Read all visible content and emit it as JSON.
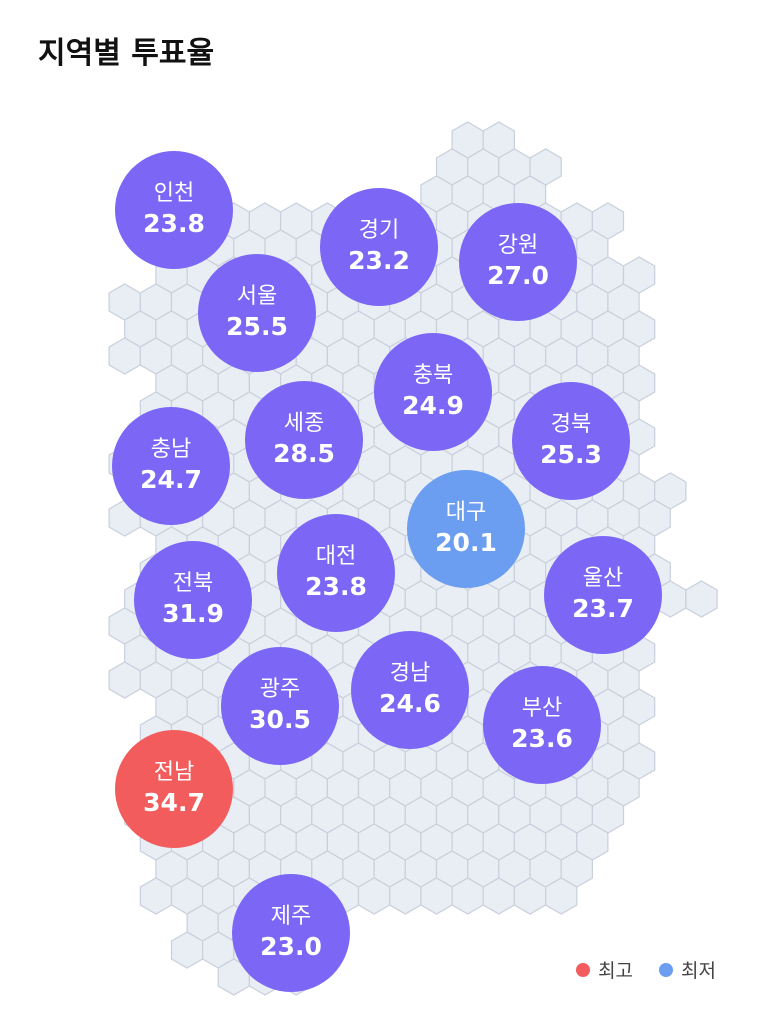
{
  "title": "지역별 투표율",
  "colors": {
    "default": "#7b66f6",
    "highest": "#f25c5c",
    "lowest": "#6b9ef0",
    "hex_fill": "#e9edf4",
    "hex_stroke": "#c9d0dc"
  },
  "regions": [
    {
      "name": "인천",
      "rate": "23.8",
      "status": "normal"
    },
    {
      "name": "경기",
      "rate": "23.2",
      "status": "normal"
    },
    {
      "name": "강원",
      "rate": "27.0",
      "status": "normal"
    },
    {
      "name": "서울",
      "rate": "25.5",
      "status": "normal"
    },
    {
      "name": "충북",
      "rate": "24.9",
      "status": "normal"
    },
    {
      "name": "세종",
      "rate": "28.5",
      "status": "normal"
    },
    {
      "name": "충남",
      "rate": "24.7",
      "status": "normal"
    },
    {
      "name": "경북",
      "rate": "25.3",
      "status": "normal"
    },
    {
      "name": "대구",
      "rate": "20.1",
      "status": "lowest"
    },
    {
      "name": "대전",
      "rate": "23.8",
      "status": "normal"
    },
    {
      "name": "전북",
      "rate": "31.9",
      "status": "normal"
    },
    {
      "name": "울산",
      "rate": "23.7",
      "status": "normal"
    },
    {
      "name": "광주",
      "rate": "30.5",
      "status": "normal"
    },
    {
      "name": "경남",
      "rate": "24.6",
      "status": "normal"
    },
    {
      "name": "부산",
      "rate": "23.6",
      "status": "normal"
    },
    {
      "name": "전남",
      "rate": "34.7",
      "status": "highest"
    },
    {
      "name": "제주",
      "rate": "23.0",
      "status": "normal"
    }
  ],
  "legend": {
    "highest_label": "최고",
    "lowest_label": "최저"
  }
}
